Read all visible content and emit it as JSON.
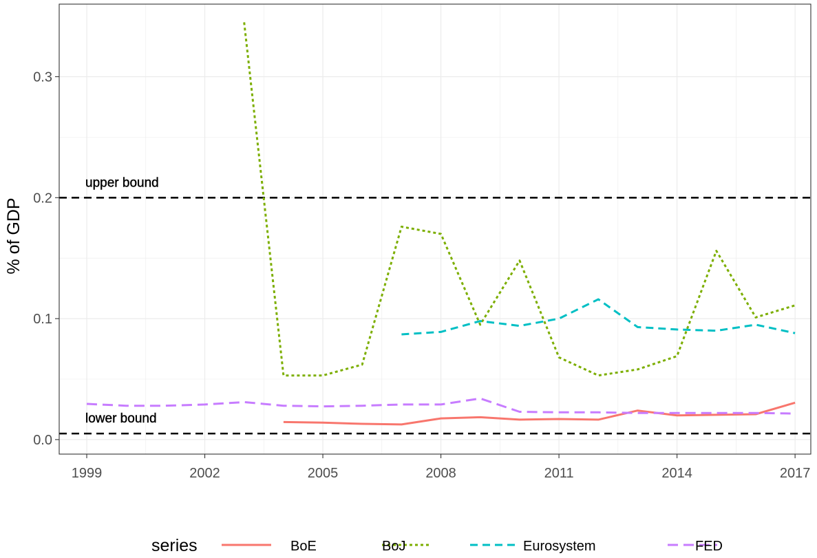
{
  "chart_data": {
    "type": "line",
    "ylabel": "% of GDP",
    "xlabel": "",
    "xlim": [
      1998.3,
      2017.4
    ],
    "ylim": [
      -0.012,
      0.36
    ],
    "x_ticks": [
      1999,
      2002,
      2005,
      2008,
      2011,
      2014,
      2017
    ],
    "x_tick_labels": [
      "1999",
      "2002",
      "2005",
      "2008",
      "2011",
      "2014",
      "2017"
    ],
    "y_ticks": [
      0.0,
      0.1,
      0.2,
      0.3
    ],
    "y_tick_labels": [
      "0.0",
      "0.1",
      "0.2",
      "0.3"
    ],
    "grid": true,
    "legend_title": "series",
    "legend_position": "bottom",
    "reference_lines": [
      {
        "value": 0.2,
        "label": "upper bound",
        "color": "#000000"
      },
      {
        "value": 0.005,
        "label": "lower bound",
        "color": "#000000"
      }
    ],
    "series": [
      {
        "name": "BoE",
        "color": "#F8766D",
        "dash": "solid",
        "x": [
          2004,
          2005,
          2006,
          2007,
          2008,
          2009,
          2010,
          2011,
          2012,
          2013,
          2014,
          2015,
          2016,
          2017
        ],
        "values": [
          0.0145,
          0.014,
          0.013,
          0.0125,
          0.0175,
          0.0185,
          0.0165,
          0.017,
          0.0165,
          0.024,
          0.02,
          0.0205,
          0.021,
          0.0305
        ]
      },
      {
        "name": "BoJ",
        "color": "#7CAE00",
        "dash": "dotted",
        "x": [
          2003,
          2004,
          2005,
          2006,
          2007,
          2008,
          2009,
          2010,
          2011,
          2012,
          2013,
          2014,
          2015,
          2016,
          2017
        ],
        "values": [
          0.345,
          0.053,
          0.053,
          0.062,
          0.176,
          0.17,
          0.095,
          0.148,
          0.068,
          0.053,
          0.058,
          0.069,
          0.156,
          0.101,
          0.111
        ]
      },
      {
        "name": "Eurosystem",
        "color": "#00BFC4",
        "dash": "dashed",
        "x": [
          2007,
          2008,
          2009,
          2010,
          2011,
          2012,
          2013,
          2014,
          2015,
          2016,
          2017
        ],
        "values": [
          0.087,
          0.089,
          0.098,
          0.094,
          0.1,
          0.116,
          0.093,
          0.091,
          0.09,
          0.095,
          0.088
        ]
      },
      {
        "name": "FED",
        "color": "#C77CFF",
        "dash": "longdash",
        "x": [
          1999,
          2000,
          2001,
          2002,
          2003,
          2004,
          2005,
          2006,
          2007,
          2008,
          2009,
          2010,
          2011,
          2012,
          2013,
          2014,
          2015,
          2016,
          2017
        ],
        "values": [
          0.0295,
          0.028,
          0.028,
          0.029,
          0.031,
          0.028,
          0.0275,
          0.028,
          0.029,
          0.029,
          0.034,
          0.023,
          0.0225,
          0.0225,
          0.022,
          0.022,
          0.022,
          0.022,
          0.0215
        ]
      }
    ]
  }
}
